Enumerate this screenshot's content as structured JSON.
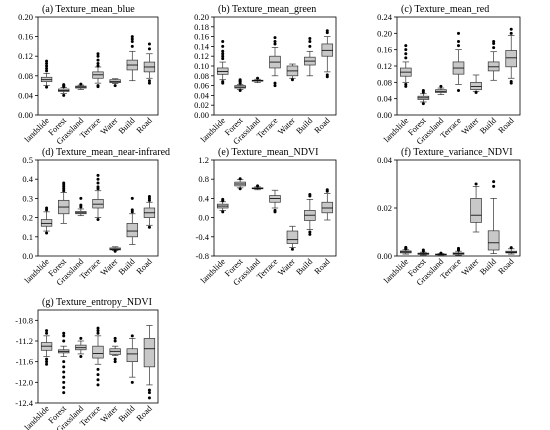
{
  "categories": [
    "landslide",
    "Forest",
    "Grassland",
    "Terrace",
    "Water",
    "Build",
    "Road"
  ],
  "colors": {
    "box_fill": "#c8c8c8",
    "box_stroke": "#333333",
    "outlier": "#000000"
  },
  "chart_data": [
    {
      "type": "box",
      "title": "(a) Texture_mean_blue",
      "ylim": [
        0,
        0.2
      ],
      "yticks": [
        "0.00",
        "0.04",
        "0.08",
        "0.12",
        "0.16",
        "0.20"
      ],
      "series": [
        {
          "category": "landslide",
          "whislo": 0.06,
          "q1": 0.068,
          "med": 0.072,
          "q3": 0.077,
          "whishi": 0.085,
          "fliers": [
            0.057,
            0.09,
            0.095,
            0.1,
            0.105,
            0.11
          ]
        },
        {
          "category": "Forest",
          "whislo": 0.044,
          "q1": 0.048,
          "med": 0.05,
          "q3": 0.053,
          "whishi": 0.056,
          "fliers": [
            0.04,
            0.058,
            0.06,
            0.062
          ]
        },
        {
          "category": "Grassland",
          "whislo": 0.052,
          "q1": 0.055,
          "med": 0.057,
          "q3": 0.059,
          "whishi": 0.061,
          "fliers": [
            0.063
          ]
        },
        {
          "category": "Terrace",
          "whislo": 0.065,
          "q1": 0.075,
          "med": 0.082,
          "q3": 0.088,
          "whishi": 0.098,
          "fliers": [
            0.058,
            0.06,
            0.1,
            0.105,
            0.112,
            0.12,
            0.125
          ]
        },
        {
          "category": "Water",
          "whislo": 0.064,
          "q1": 0.066,
          "med": 0.068,
          "q3": 0.072,
          "whishi": 0.074,
          "fliers": [
            0.06
          ]
        },
        {
          "category": "Build",
          "whislo": 0.07,
          "q1": 0.092,
          "med": 0.102,
          "q3": 0.112,
          "whishi": 0.13,
          "fliers": [
            0.14,
            0.15,
            0.155,
            0.16
          ]
        },
        {
          "category": "Road",
          "whislo": 0.075,
          "q1": 0.088,
          "med": 0.098,
          "q3": 0.108,
          "whishi": 0.125,
          "fliers": [
            0.065,
            0.07,
            0.135,
            0.145
          ]
        }
      ]
    },
    {
      "type": "box",
      "title": "(b) Texture_mean_green",
      "ylim": [
        0,
        0.2
      ],
      "yticks": [
        "0.00",
        "0.02",
        "0.04",
        "0.06",
        "0.08",
        "0.10",
        "0.12",
        "0.14",
        "0.16",
        "0.18",
        "0.20"
      ],
      "series": [
        {
          "category": "landslide",
          "whislo": 0.072,
          "q1": 0.083,
          "med": 0.089,
          "q3": 0.096,
          "whishi": 0.108,
          "fliers": [
            0.065,
            0.068,
            0.115,
            0.12,
            0.125,
            0.13,
            0.14,
            0.15
          ]
        },
        {
          "category": "Forest",
          "whislo": 0.052,
          "q1": 0.055,
          "med": 0.057,
          "q3": 0.06,
          "whishi": 0.062,
          "fliers": [
            0.05,
            0.065,
            0.068,
            0.07,
            0.072
          ]
        },
        {
          "category": "Grassland",
          "whislo": 0.066,
          "q1": 0.069,
          "med": 0.07,
          "q3": 0.071,
          "whishi": 0.073,
          "fliers": [
            0.075
          ]
        },
        {
          "category": "Terrace",
          "whislo": 0.08,
          "q1": 0.096,
          "med": 0.108,
          "q3": 0.12,
          "whishi": 0.138,
          "fliers": [
            0.06,
            0.065,
            0.145,
            0.15,
            0.158
          ]
        },
        {
          "category": "Water",
          "whislo": 0.075,
          "q1": 0.08,
          "med": 0.09,
          "q3": 0.1,
          "whishi": 0.104,
          "fliers": [
            0.072
          ]
        },
        {
          "category": "Build",
          "whislo": 0.08,
          "q1": 0.102,
          "med": 0.11,
          "q3": 0.118,
          "whishi": 0.13,
          "fliers": [
            0.14,
            0.15,
            0.156
          ]
        },
        {
          "category": "Road",
          "whislo": 0.088,
          "q1": 0.12,
          "med": 0.132,
          "q3": 0.145,
          "whishi": 0.16,
          "fliers": [
            0.078,
            0.082,
            0.168,
            0.172
          ]
        }
      ]
    },
    {
      "type": "box",
      "title": "(c) Texture_mean_red",
      "ylim": [
        0,
        0.24
      ],
      "yticks": [
        "0.00",
        "0.04",
        "0.08",
        "0.12",
        "0.16",
        "0.20",
        "0.24"
      ],
      "series": [
        {
          "category": "landslide",
          "whislo": 0.08,
          "q1": 0.095,
          "med": 0.105,
          "q3": 0.115,
          "whishi": 0.13,
          "fliers": [
            0.07,
            0.075,
            0.14,
            0.15,
            0.16,
            0.17
          ]
        },
        {
          "category": "Forest",
          "whislo": 0.032,
          "q1": 0.038,
          "med": 0.042,
          "q3": 0.046,
          "whishi": 0.052,
          "fliers": [
            0.028,
            0.056,
            0.06
          ]
        },
        {
          "category": "Grassland",
          "whislo": 0.05,
          "q1": 0.055,
          "med": 0.058,
          "q3": 0.062,
          "whishi": 0.066,
          "fliers": [
            0.07
          ]
        },
        {
          "category": "Terrace",
          "whislo": 0.075,
          "q1": 0.1,
          "med": 0.115,
          "q3": 0.13,
          "whishi": 0.16,
          "fliers": [
            0.06,
            0.17,
            0.18,
            0.2
          ]
        },
        {
          "category": "Water",
          "whislo": 0.058,
          "q1": 0.062,
          "med": 0.07,
          "q3": 0.08,
          "whishi": 0.098,
          "fliers": [
            0.055
          ]
        },
        {
          "category": "Build",
          "whislo": 0.085,
          "q1": 0.108,
          "med": 0.118,
          "q3": 0.13,
          "whishi": 0.155,
          "fliers": [
            0.165,
            0.175,
            0.18
          ]
        },
        {
          "category": "Road",
          "whislo": 0.09,
          "q1": 0.118,
          "med": 0.14,
          "q3": 0.158,
          "whishi": 0.195,
          "fliers": [
            0.078,
            0.082,
            0.2,
            0.21
          ]
        }
      ]
    },
    {
      "type": "box",
      "title": "(d) Texture_mean_near-infrared",
      "ylim": [
        0,
        0.5
      ],
      "yticks": [
        "0.0",
        "0.1",
        "0.2",
        "0.3",
        "0.4",
        "0.5"
      ],
      "series": [
        {
          "category": "landslide",
          "whislo": 0.13,
          "q1": 0.155,
          "med": 0.17,
          "q3": 0.19,
          "whishi": 0.23,
          "fliers": [
            0.12,
            0.24,
            0.25
          ]
        },
        {
          "category": "Forest",
          "whislo": 0.17,
          "q1": 0.22,
          "med": 0.255,
          "q3": 0.29,
          "whishi": 0.33,
          "fliers": [
            0.34,
            0.35,
            0.36,
            0.37,
            0.38
          ]
        },
        {
          "category": "Grassland",
          "whislo": 0.21,
          "q1": 0.22,
          "med": 0.225,
          "q3": 0.232,
          "whishi": 0.245,
          "fliers": [
            0.255,
            0.265,
            0.3
          ]
        },
        {
          "category": "Terrace",
          "whislo": 0.2,
          "q1": 0.25,
          "med": 0.27,
          "q3": 0.295,
          "whishi": 0.34,
          "fliers": [
            0.19,
            0.35,
            0.36,
            0.38,
            0.4,
            0.42
          ]
        },
        {
          "category": "Water",
          "whislo": 0.028,
          "q1": 0.032,
          "med": 0.036,
          "q3": 0.042,
          "whishi": 0.048,
          "fliers": [
            0.025
          ]
        },
        {
          "category": "Build",
          "whislo": 0.06,
          "q1": 0.1,
          "med": 0.13,
          "q3": 0.17,
          "whishi": 0.22,
          "fliers": [
            0.23,
            0.24,
            0.3
          ]
        },
        {
          "category": "Road",
          "whislo": 0.16,
          "q1": 0.2,
          "med": 0.225,
          "q3": 0.25,
          "whishi": 0.28,
          "fliers": [
            0.15,
            0.29,
            0.3,
            0.31
          ]
        }
      ]
    },
    {
      "type": "box",
      "title": "(e) Texture_mean_NDVI",
      "ylim": [
        -0.8,
        1.2
      ],
      "yticks": [
        "-0.8",
        "-0.4",
        "0.0",
        "0.4",
        "0.8",
        "1.2"
      ],
      "series": [
        {
          "category": "landslide",
          "whislo": 0.15,
          "q1": 0.2,
          "med": 0.24,
          "q3": 0.28,
          "whishi": 0.33,
          "fliers": [
            0.12,
            0.35,
            0.38
          ]
        },
        {
          "category": "Forest",
          "whislo": 0.62,
          "q1": 0.66,
          "med": 0.7,
          "q3": 0.74,
          "whishi": 0.79,
          "fliers": [
            0.6,
            0.81
          ]
        },
        {
          "category": "Grassland",
          "whislo": 0.58,
          "q1": 0.6,
          "med": 0.61,
          "q3": 0.62,
          "whishi": 0.64,
          "fliers": [
            0.66
          ]
        },
        {
          "category": "Terrace",
          "whislo": 0.2,
          "q1": 0.32,
          "med": 0.4,
          "q3": 0.46,
          "whishi": 0.57,
          "fliers": [
            0.12,
            0.15
          ]
        },
        {
          "category": "Water",
          "whislo": -0.62,
          "q1": -0.54,
          "med": -0.46,
          "q3": -0.28,
          "whishi": -0.18,
          "fliers": [
            -0.66
          ]
        },
        {
          "category": "Build",
          "whislo": -0.25,
          "q1": -0.06,
          "med": 0.05,
          "q3": 0.15,
          "whishi": 0.38,
          "fliers": [
            -0.35,
            -0.3,
            0.45,
            0.48
          ]
        },
        {
          "category": "Road",
          "whislo": -0.05,
          "q1": 0.1,
          "med": 0.2,
          "q3": 0.32,
          "whishi": 0.5,
          "fliers": [
            0.55,
            0.58
          ]
        }
      ]
    },
    {
      "type": "box",
      "title": "(f) Texture_variance_NDVI",
      "ylim": [
        0,
        0.04
      ],
      "yticks": [
        "0.00",
        "0.02",
        "0.04"
      ],
      "series": [
        {
          "category": "landslide",
          "whislo": 0.0008,
          "q1": 0.0013,
          "med": 0.0017,
          "q3": 0.0021,
          "whishi": 0.0026,
          "fliers": [
            0.003,
            0.0033,
            0.0036
          ]
        },
        {
          "category": "Forest",
          "whislo": 0.0004,
          "q1": 0.0007,
          "med": 0.0009,
          "q3": 0.0012,
          "whishi": 0.0016,
          "fliers": [
            0.002,
            0.0025
          ]
        },
        {
          "category": "Grassland",
          "whislo": 0.0004,
          "q1": 0.0006,
          "med": 0.0007,
          "q3": 0.0008,
          "whishi": 0.001,
          "fliers": [
            0.0012
          ]
        },
        {
          "category": "Terrace",
          "whislo": 0.0003,
          "q1": 0.0007,
          "med": 0.001,
          "q3": 0.0013,
          "whishi": 0.002,
          "fliers": [
            0.0024,
            0.0028,
            0.0032
          ]
        },
        {
          "category": "Water",
          "whislo": 0.01,
          "q1": 0.014,
          "med": 0.017,
          "q3": 0.024,
          "whishi": 0.029,
          "fliers": [
            0.03
          ]
        },
        {
          "category": "Build",
          "whislo": 0.001,
          "q1": 0.0025,
          "med": 0.0055,
          "q3": 0.0105,
          "whishi": 0.024,
          "fliers": [
            0.029,
            0.031
          ]
        },
        {
          "category": "Road",
          "whislo": 0.0008,
          "q1": 0.0013,
          "med": 0.0016,
          "q3": 0.002,
          "whishi": 0.003,
          "fliers": [
            0.0035
          ]
        }
      ]
    },
    {
      "type": "box",
      "title": "(g) Texture_entropy_NDVI",
      "ylim": [
        -12.4,
        -10.6
      ],
      "yticks": [
        "-12.4",
        "-12.0",
        "-11.6",
        "-11.2",
        "-10.8"
      ],
      "series": [
        {
          "category": "landslide",
          "whislo": -11.5,
          "q1": -11.38,
          "med": -11.3,
          "q3": -11.23,
          "whishi": -11.1,
          "fliers": [
            -11.55,
            -11.6,
            -11.65,
            -11.05,
            -11.0
          ]
        },
        {
          "category": "Forest",
          "whislo": -11.5,
          "q1": -11.43,
          "med": -11.4,
          "q3": -11.37,
          "whishi": -11.3,
          "fliers": [
            -11.6,
            -11.7,
            -11.8,
            -11.9,
            -12.0,
            -12.1,
            -12.2,
            -11.2,
            -11.1,
            -11.05
          ]
        },
        {
          "category": "Grassland",
          "whislo": -11.45,
          "q1": -11.37,
          "med": -11.33,
          "q3": -11.28,
          "whishi": -11.2,
          "fliers": [
            -11.5,
            -11.15
          ]
        },
        {
          "category": "Terrace",
          "whislo": -11.65,
          "q1": -11.53,
          "med": -11.44,
          "q3": -11.3,
          "whishi": -11.1,
          "fliers": [
            -11.75,
            -11.85,
            -11.95,
            -12.05,
            -11.05,
            -11.0,
            -10.95
          ]
        },
        {
          "category": "Water",
          "whislo": -11.48,
          "q1": -11.46,
          "med": -11.4,
          "q3": -11.35,
          "whishi": -11.3,
          "fliers": [
            -11.55,
            -11.6,
            -11.2,
            -11.15
          ]
        },
        {
          "category": "Build",
          "whislo": -11.9,
          "q1": -11.6,
          "med": -11.45,
          "q3": -11.35,
          "whishi": -11.15,
          "fliers": [
            -12.0,
            -11.1
          ]
        },
        {
          "category": "Road",
          "whislo": -12.05,
          "q1": -11.7,
          "med": -11.35,
          "q3": -11.15,
          "whishi": -10.9,
          "fliers": [
            -12.15,
            -12.2,
            -12.3
          ]
        }
      ]
    }
  ]
}
